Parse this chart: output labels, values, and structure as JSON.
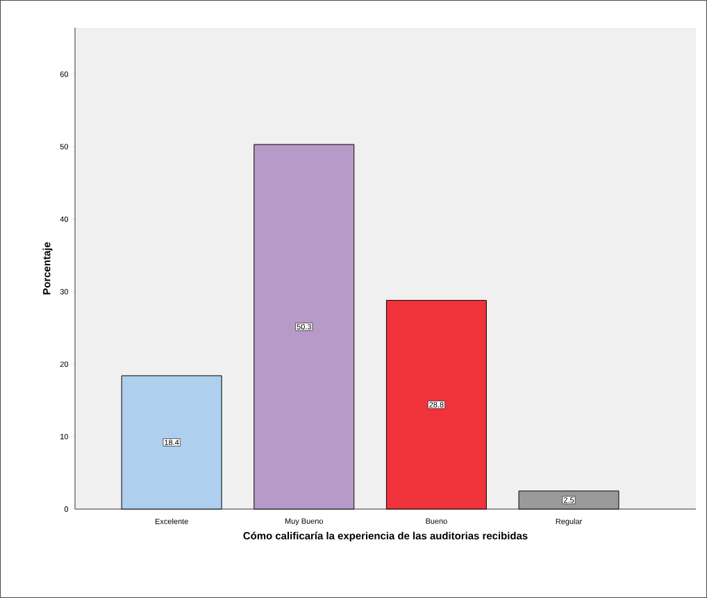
{
  "chart_data": {
    "type": "bar",
    "xlabel": "Cómo calificaría la experiencia de las auditorias recibidas",
    "ylabel": "Porcentaje",
    "categories": [
      "Excelente",
      "Muy Bueno",
      "Bueno",
      "Regular"
    ],
    "values": [
      18.4,
      50.3,
      28.8,
      2.5
    ],
    "colors": [
      "#aecfee",
      "#b89ac9",
      "#f0323a",
      "#9a9a9a"
    ],
    "ylim": [
      0,
      66.4
    ],
    "yticks": [
      0,
      10,
      20,
      30,
      40,
      50,
      60
    ],
    "data_labels": true
  }
}
